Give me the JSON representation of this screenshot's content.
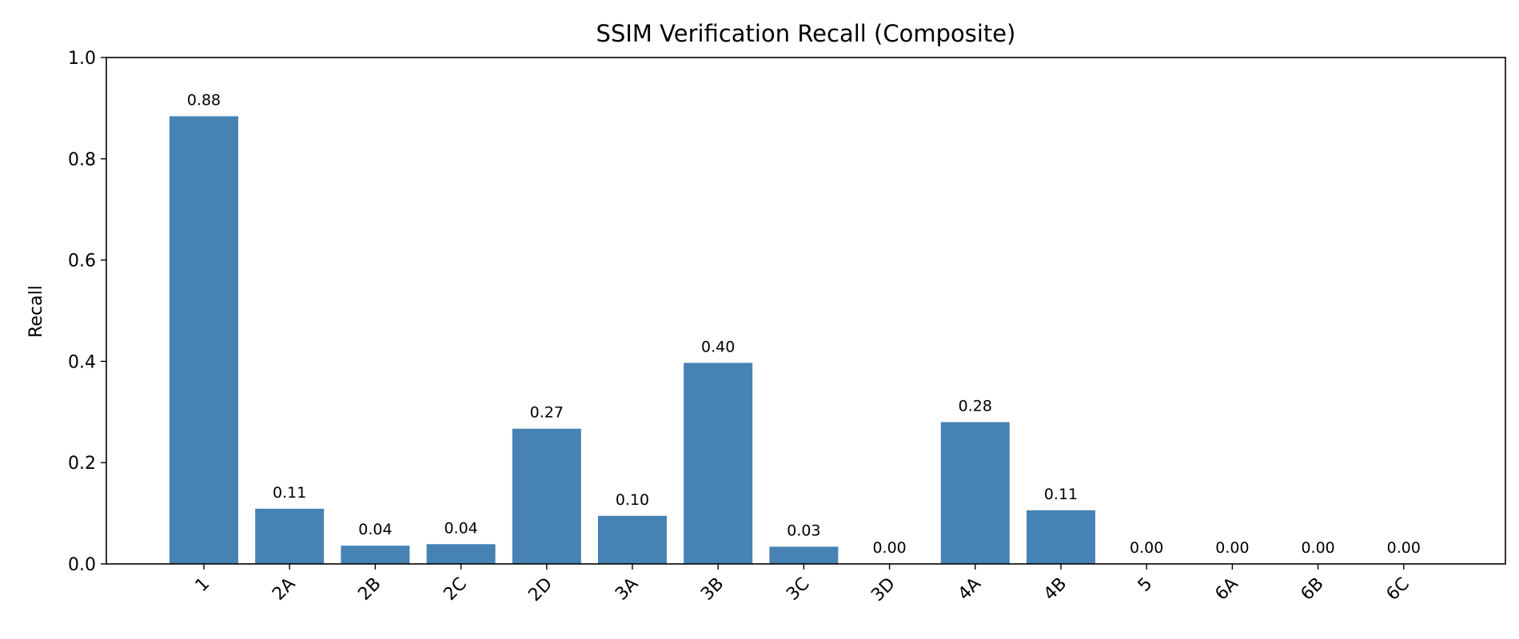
{
  "chart_data": {
    "type": "bar",
    "title": "SSIM Verification Recall (Composite)",
    "xlabel": "",
    "ylabel": "Recall",
    "ylim": [
      0,
      1.0
    ],
    "yticks": [
      "0.0",
      "0.2",
      "0.4",
      "0.6",
      "0.8",
      "1.0"
    ],
    "grid": false,
    "bar_color": "#4682b4",
    "categories": [
      "1",
      "2A",
      "2B",
      "2C",
      "2D",
      "3A",
      "3B",
      "3C",
      "3D",
      "4A",
      "4B",
      "5",
      "6A",
      "6B",
      "6C"
    ],
    "values": [
      0.884,
      0.109,
      0.036,
      0.039,
      0.267,
      0.095,
      0.397,
      0.034,
      0.0,
      0.28,
      0.106,
      0.0,
      0.0,
      0.0,
      0.0
    ],
    "value_labels": [
      "0.88",
      "0.11",
      "0.04",
      "0.04",
      "0.27",
      "0.10",
      "0.40",
      "0.03",
      "0.00",
      "0.28",
      "0.11",
      "0.00",
      "0.00",
      "0.00",
      "0.00"
    ]
  }
}
